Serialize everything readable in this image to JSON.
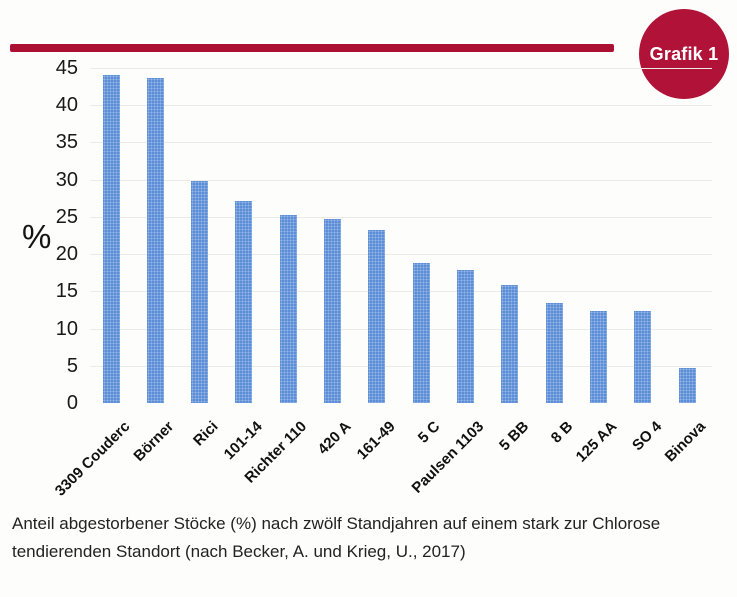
{
  "badge": {
    "label": "Grafik 1",
    "color": "#b11237"
  },
  "decor": {
    "rule_color": "#ab0f31"
  },
  "chart_data": {
    "type": "bar",
    "categories": [
      "3309 Couderc",
      "Börner",
      "Rici",
      "101-14",
      "Richter 110",
      "420 A",
      "161-49",
      "5 C",
      "Paulsen 1103",
      "5 BB",
      "8 B",
      "125 AA",
      "SO 4",
      "Binova"
    ],
    "values": [
      44.0,
      43.6,
      29.8,
      27.2,
      25.3,
      24.7,
      23.2,
      18.8,
      17.9,
      15.8,
      13.4,
      12.4,
      12.3,
      4.7
    ],
    "title": "",
    "xlabel": "",
    "ylabel": "%",
    "ylim": [
      0,
      45
    ],
    "yticks": [
      45,
      40,
      35,
      30,
      25,
      20,
      15,
      10,
      5,
      0
    ],
    "grid": true,
    "legend": false,
    "bar_color": "#4e84d4"
  },
  "caption": {
    "text": "Anteil abgestorbener Stöcke (%) nach zwölf Standjahren auf einem stark zur Chlorose tendierenden Standort (nach Becker, A. und Krieg, U., 2017)"
  }
}
